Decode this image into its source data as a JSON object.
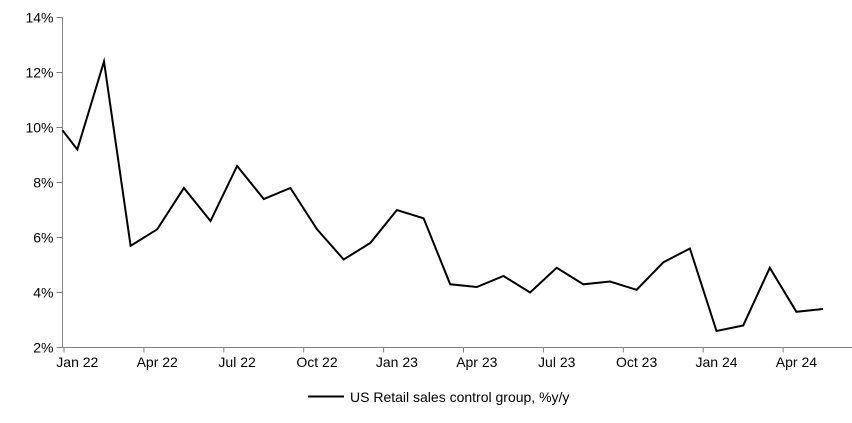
{
  "chart_data": {
    "type": "line",
    "title": "",
    "x_categories": [
      "Jan 22",
      "Feb 22",
      "Mar 22",
      "Apr 22",
      "May 22",
      "Jun 22",
      "Jul 22",
      "Aug 22",
      "Sep 22",
      "Oct 22",
      "Nov 22",
      "Dec 22",
      "Jan 23",
      "Feb 23",
      "Mar 23",
      "Apr 23",
      "May 23",
      "Jun 23",
      "Jul 23",
      "Aug 23",
      "Sep 23",
      "Oct 23",
      "Nov 23",
      "Dec 23",
      "Jan 24",
      "Feb 24",
      "Mar 24",
      "Apr 24",
      "May 24"
    ],
    "series": [
      {
        "name": "US Retail sales control group, %y/y",
        "color": "#000000",
        "width": 2,
        "values": [
          9.2,
          12.4,
          5.7,
          6.3,
          7.8,
          6.6,
          8.6,
          7.4,
          7.8,
          6.3,
          5.2,
          5.8,
          7.0,
          6.7,
          4.3,
          4.2,
          4.6,
          4.0,
          4.9,
          4.3,
          4.4,
          4.1,
          5.1,
          5.6,
          2.6,
          2.8,
          4.9,
          3.3,
          3.4
        ]
      }
    ],
    "clipped_left_edge_value": 9.9,
    "x_tick_labels": [
      "Jan 22",
      "Apr 22",
      "Jul 22",
      "Oct 22",
      "Jan 23",
      "Apr 23",
      "Jul 23",
      "Oct 23",
      "Jan 24",
      "Apr 24"
    ],
    "x_tick_interval_months": 3,
    "y_ticks": [
      {
        "value": 2,
        "label": "2%"
      },
      {
        "value": 4,
        "label": "4%"
      },
      {
        "value": 6,
        "label": "6%"
      },
      {
        "value": 8,
        "label": "8%"
      },
      {
        "value": 10,
        "label": "10%"
      },
      {
        "value": 12,
        "label": "12%"
      },
      {
        "value": 14,
        "label": "14%"
      }
    ],
    "ylim": [
      2,
      14
    ],
    "grid": "off",
    "legend_position": "bottom-center",
    "axis_color": "#808080",
    "text_color": "#000000",
    "background": "#ffffff"
  }
}
